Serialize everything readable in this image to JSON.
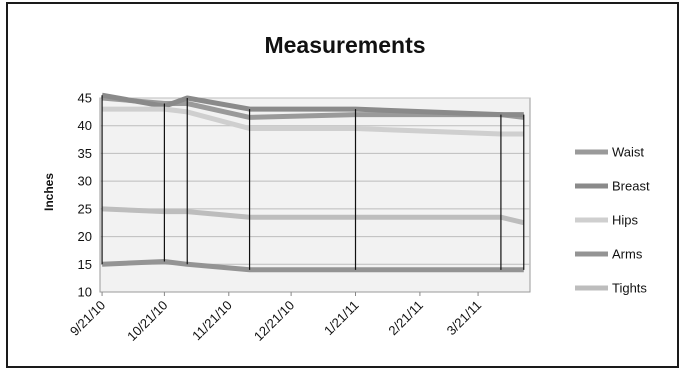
{
  "chart_data": {
    "type": "line",
    "title": "Measurements",
    "xlabel": "",
    "ylabel": "Inches",
    "ylim": [
      10,
      45
    ],
    "yticks": [
      10,
      15,
      20,
      25,
      30,
      35,
      40,
      45
    ],
    "xlim": [
      "2010-09-20",
      "2011-04-15"
    ],
    "xticks": [
      {
        "date": "2010-09-21",
        "label": "9/21/10"
      },
      {
        "date": "2010-10-21",
        "label": "10/21/10"
      },
      {
        "date": "2010-11-21",
        "label": "11/21/10"
      },
      {
        "date": "2010-12-21",
        "label": "12/21/10"
      },
      {
        "date": "2011-01-21",
        "label": "1/21/11"
      },
      {
        "date": "2011-02-21",
        "label": "2/21/11"
      },
      {
        "date": "2011-03-21",
        "label": "3/21/11"
      }
    ],
    "x": [
      "2010-09-21",
      "2010-10-21",
      "2010-11-01",
      "2010-12-01",
      "2011-01-21",
      "2011-04-01",
      "2011-04-12"
    ],
    "series": [
      {
        "name": "Waist",
        "color": "#9a9a9a",
        "values": [
          45.0,
          44.0,
          44.0,
          41.5,
          42.0,
          42.0,
          41.5
        ]
      },
      {
        "name": "Breast",
        "color": "#8a8a8a",
        "values": [
          45.5,
          43.5,
          45.0,
          43.0,
          43.0,
          42.0,
          42.0
        ]
      },
      {
        "name": "Hips",
        "color": "#cfcfcf",
        "values": [
          43.0,
          43.0,
          42.5,
          39.5,
          39.5,
          38.5,
          38.5
        ]
      },
      {
        "name": "Arms",
        "color": "#949494",
        "values": [
          15.0,
          15.5,
          15.0,
          14.0,
          14.0,
          14.0,
          14.0
        ]
      },
      {
        "name": "Tights",
        "color": "#bdbdbd",
        "values": [
          25.0,
          24.5,
          24.5,
          23.5,
          23.5,
          23.5,
          22.5
        ]
      }
    ],
    "vertical_markers": [
      "2010-09-21",
      "2010-10-21",
      "2010-11-01",
      "2010-12-01",
      "2011-01-21",
      "2011-04-01",
      "2011-04-12"
    ],
    "grid": true,
    "legend": "right"
  }
}
